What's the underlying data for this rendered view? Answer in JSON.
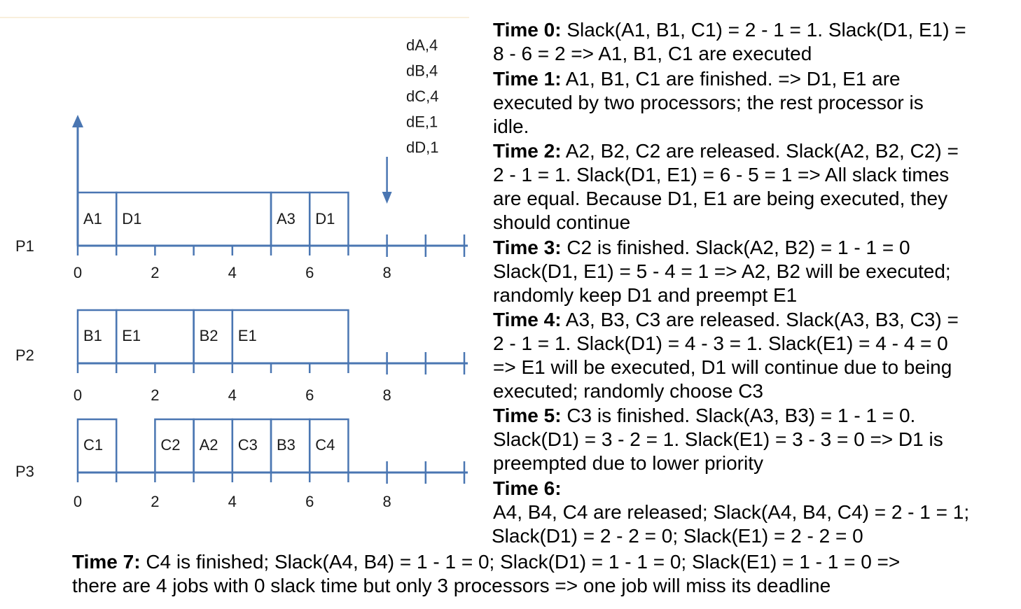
{
  "deadline_labels": [
    "dA,4",
    "dB,4",
    "dC,4",
    "dE,1",
    "dD,1"
  ],
  "processors": [
    {
      "name": "P1",
      "blocks": [
        {
          "label": "A1",
          "start": 0,
          "end": 1
        },
        {
          "label": "D1",
          "start": 1,
          "end": 5
        },
        {
          "label": "A3",
          "start": 5,
          "end": 6
        },
        {
          "label": "D1",
          "start": 6,
          "end": 7
        }
      ]
    },
    {
      "name": "P2",
      "blocks": [
        {
          "label": "B1",
          "start": 0,
          "end": 1
        },
        {
          "label": "E1",
          "start": 1,
          "end": 3
        },
        {
          "label": "B2",
          "start": 3,
          "end": 4
        },
        {
          "label": "E1",
          "start": 4,
          "end": 7
        }
      ]
    },
    {
      "name": "P3",
      "blocks": [
        {
          "label": "C1",
          "start": 0,
          "end": 1
        },
        {
          "label": "C2",
          "start": 2,
          "end": 3
        },
        {
          "label": "A2",
          "start": 3,
          "end": 4
        },
        {
          "label": "C3",
          "start": 4,
          "end": 5
        },
        {
          "label": "B3",
          "start": 5,
          "end": 6
        },
        {
          "label": "C4",
          "start": 6,
          "end": 7
        }
      ]
    }
  ],
  "axis_ticks": [
    "0",
    "2",
    "4",
    "6",
    "8"
  ],
  "explanation": [
    {
      "time": "Time 0:",
      "lines": [
        "Slack(A1, B1, C1) = 2 - 1 = 1. Slack(D1, E1) =",
        "8 - 6 = 2 => A1, B1, C1 are executed"
      ]
    },
    {
      "time": "Time 1:",
      "lines": [
        "A1, B1, C1 are finished. => D1, E1 are",
        "executed by two processors; the rest processor is",
        "idle."
      ]
    },
    {
      "time": "Time 2:",
      "lines": [
        "A2, B2, C2 are released. Slack(A2, B2, C2) =",
        "2 - 1 = 1. Slack(D1, E1) = 6 - 5 = 1 => All slack times",
        "are equal. Because D1, E1 are being executed, they",
        "should continue"
      ]
    },
    {
      "time": "Time 3:",
      "lines": [
        "C2 is finished. Slack(A2, B2) = 1 - 1 = 0",
        "Slack(D1, E1) = 5 - 4 = 1 => A2, B2 will be executed;",
        "randomly keep D1 and preempt E1"
      ]
    },
    {
      "time": "Time 4:",
      "lines": [
        "A3, B3, C3 are released. Slack(A3, B3, C3) =",
        "2 - 1 = 1. Slack(D1) = 4 - 3 = 1. Slack(E1) = 4 - 4 = 0",
        "=> E1 will be executed, D1 will continue due to being",
        "executed; randomly choose C3"
      ]
    },
    {
      "time": "Time 5:",
      "lines": [
        "C3 is finished. Slack(A3, B3) = 1 - 1 = 0.",
        "Slack(D1) = 3 - 2 = 1. Slack(E1) = 3 - 3 = 0 => D1 is",
        "preempted due to lower priority"
      ]
    },
    {
      "time": "Time 6:",
      "lines": [
        "",
        "A4, B4, C4 are released; Slack(A4, B4, C4) = 2 - 1 = 1;",
        "Slack(D1) = 2 - 2 = 0; Slack(E1) = 2 - 2 = 0"
      ]
    }
  ],
  "time7": {
    "label": "Time 7:",
    "line1": "C4 is finished; Slack(A4, B4) = 1 - 1 = 0; Slack(D1) = 1 - 1 = 0; Slack(E1) = 1 - 1 = 0 =>",
    "line2": "there are 4 jobs with 0 slack time but only 3 processors => one job will miss its deadline"
  }
}
